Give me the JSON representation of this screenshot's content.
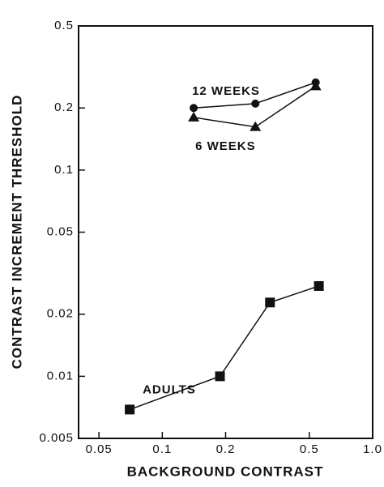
{
  "chart_data": {
    "type": "line",
    "x_label": "BACKGROUND CONTRAST",
    "y_label": "CONTRAST INCREMENT THRESHOLD",
    "log_x": true,
    "log_y": true,
    "grid": false,
    "xlim": [
      0.04,
      1
    ],
    "ylim": [
      0.005,
      0.5
    ],
    "xticks": [
      0.05,
      0.1,
      0.2,
      0.5,
      {
        "value": 1,
        "label": "1.0"
      }
    ],
    "yticks": [
      0.005,
      0.01,
      0.02,
      0.05,
      0.1,
      0.2,
      0.5
    ],
    "series": [
      {
        "name": "12 WEEKS",
        "color": "#111",
        "marker": "circle",
        "x": [
          0.141,
          0.277,
          0.536
        ],
        "values": [
          0.2,
          0.21,
          0.266
        ]
      },
      {
        "name": "6 WEEKS",
        "color": "#111",
        "marker": "triangle",
        "x": [
          0.141,
          0.277,
          0.536
        ],
        "values": [
          0.18,
          0.162,
          0.255
        ]
      },
      {
        "name": "ADULTS",
        "color": "#111",
        "marker": "square",
        "x": [
          0.07,
          0.188,
          0.325,
          0.555
        ],
        "values": [
          0.0069,
          0.01,
          0.0228,
          0.0274
        ]
      }
    ]
  }
}
